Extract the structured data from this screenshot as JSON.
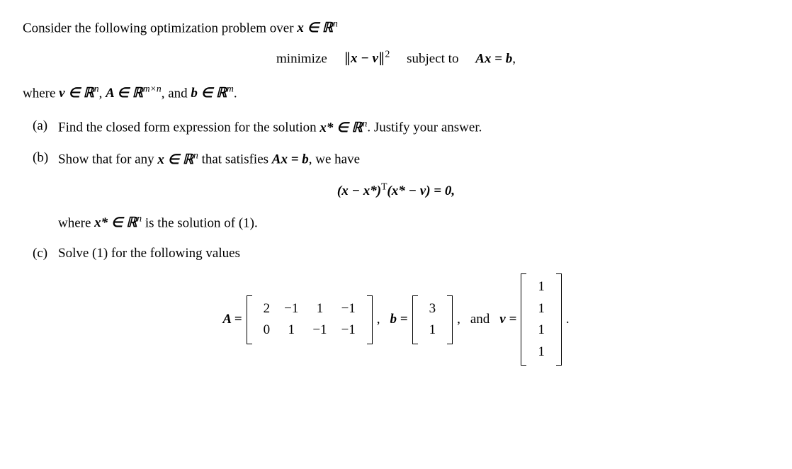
{
  "intro_prefix": "Consider the following optimization problem over ",
  "intro_var": "x ∈ ℝ",
  "intro_sup": "n",
  "eq": {
    "minimize": "minimize",
    "objective_l": "∥",
    "objective_mid": "x − v",
    "objective_r": "∥",
    "obj_sup": "2",
    "subject_to": "subject to",
    "constraint_l": "Ax = b",
    "comma": ","
  },
  "where": {
    "prefix": "where ",
    "v_in": "v ∈ ℝ",
    "v_sup": "n",
    "A_in": "A ∈ ℝ",
    "A_sup": "m×n",
    "b_in": "b ∈ ℝ",
    "b_sup": "m",
    "period": "."
  },
  "parts": {
    "a": {
      "label": "(a)",
      "text_pre": "Find the closed form expression for the solution ",
      "xstar": "x* ∈ ℝ",
      "xstar_sup": "n",
      "text_post": ". Justify your answer."
    },
    "b": {
      "label": "(b)",
      "text_pre": "Show that for any ",
      "x_in": "x ∈ ℝ",
      "x_sup": "n",
      "text_mid": " that satisfies ",
      "constraint": "Ax = b",
      "text_post": ", we have",
      "orth_eq_l": "(x − x*)",
      "orth_sup": "T",
      "orth_eq_r": "(x* − v) = 0,",
      "where_line_pre": "where ",
      "where_xstar": "x* ∈ ℝ",
      "where_sup": "n",
      "where_line_post": " is the solution of (1)."
    },
    "c": {
      "label": "(c)",
      "text": "Solve (1) for the following values"
    }
  },
  "matrices": {
    "A_eq": "A =",
    "A": [
      [
        "2",
        "−1",
        "1",
        "−1"
      ],
      [
        "0",
        "1",
        "−1",
        "−1"
      ]
    ],
    "b_eq": "b =",
    "b": [
      [
        "3"
      ],
      [
        "1"
      ]
    ],
    "and": "and",
    "v_eq": "v =",
    "v": [
      [
        "1"
      ],
      [
        "1"
      ],
      [
        "1"
      ],
      [
        "1"
      ]
    ],
    "comma": ",",
    "period": "."
  },
  "style": {
    "text_color": "#000000",
    "background_color": "#ffffff",
    "fontsize_body": 19,
    "fontsize_sup": 13
  }
}
